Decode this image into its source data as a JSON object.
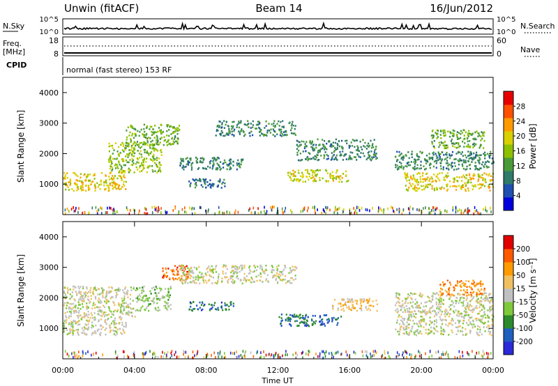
{
  "header": {
    "station": "Unwin (fitACF)",
    "beam": "Beam 14",
    "date": "16/Jun/2012"
  },
  "noise_panel": {
    "left_label": "N.Sky",
    "right_label": "N.Search",
    "left_ticks": [
      "10^5",
      "10^0"
    ],
    "right_ticks": [
      "10^5",
      "10^0"
    ]
  },
  "freq_panel": {
    "left_label": "Freq.",
    "left_unit": "[MHz]",
    "left_ticks": [
      "18",
      "8"
    ],
    "right_label": "Nave",
    "right_ticks": [
      "60",
      "0"
    ]
  },
  "cpid": {
    "label": "CPID",
    "text": "normal (fast stereo) 153 RF"
  },
  "colors": {
    "axis": "#000000",
    "ground_scatter_gray": "#c0c0c0"
  },
  "chart_data": [
    {
      "type": "heatmap",
      "name": "power",
      "ylabel": "Slant Range [km]",
      "xlim_hours": [
        0,
        24
      ],
      "ylim": [
        0,
        4500
      ],
      "yticks": [
        1000,
        2000,
        3000,
        4000
      ],
      "colorbar": {
        "label": "Power [dB]",
        "ticks": [
          4,
          8,
          12,
          16,
          20,
          24,
          28
        ],
        "range": [
          0,
          32
        ],
        "colors": [
          "#0000dd",
          "#1f4fb0",
          "#2f7a6a",
          "#4a9a3a",
          "#8cc000",
          "#d8d000",
          "#ff9b00",
          "#ff5000",
          "#e80000"
        ]
      },
      "echo_regions": [
        {
          "t": [
            0.0,
            3.5
          ],
          "r": [
            800,
            1400
          ],
          "value": 20
        },
        {
          "t": [
            2.5,
            5.5
          ],
          "r": [
            1400,
            2400
          ],
          "value": 16
        },
        {
          "t": [
            3.5,
            6.5
          ],
          "r": [
            2300,
            3000
          ],
          "value": 14
        },
        {
          "t": [
            6.5,
            10.0
          ],
          "r": [
            1500,
            1900
          ],
          "value": 10
        },
        {
          "t": [
            7.0,
            9.0
          ],
          "r": [
            900,
            1200
          ],
          "value": 8
        },
        {
          "t": [
            8.5,
            13.0
          ],
          "r": [
            2600,
            3100
          ],
          "value": 10
        },
        {
          "t": [
            12.5,
            16.0
          ],
          "r": [
            1100,
            1500
          ],
          "value": 18
        },
        {
          "t": [
            13.0,
            17.5
          ],
          "r": [
            1800,
            2500
          ],
          "value": 10
        },
        {
          "t": [
            19.0,
            24.0
          ],
          "r": [
            800,
            1400
          ],
          "value": 20
        },
        {
          "t": [
            18.5,
            24.0
          ],
          "r": [
            1500,
            2100
          ],
          "value": 10
        },
        {
          "t": [
            20.5,
            23.5
          ],
          "r": [
            2200,
            2800
          ],
          "value": 14
        }
      ]
    },
    {
      "type": "heatmap",
      "name": "velocity",
      "ylabel": "Slant Range [km]",
      "xlabel": "Time UT",
      "xlim_hours": [
        0,
        24
      ],
      "ylim": [
        0,
        4500
      ],
      "yticks": [
        1000,
        2000,
        3000,
        4000
      ],
      "xticks": [
        "00:00",
        "04:00",
        "08:00",
        "12:00",
        "16:00",
        "20:00",
        "00:00"
      ],
      "colorbar": {
        "label": "Velocity [m s⁻¹]",
        "ticks": [
          "200",
          "100",
          "50",
          "15",
          "-15",
          "-50",
          "-100",
          "-200"
        ],
        "range": [
          -250,
          250
        ],
        "colors": [
          "#2a2ad8",
          "#1f5fc0",
          "#2b8a2b",
          "#7ec93a",
          "#c0c0c0",
          "#f0c060",
          "#ff9b00",
          "#ff5a00",
          "#e00000"
        ]
      },
      "echo_regions": [
        {
          "t": [
            0.0,
            3.5
          ],
          "r": [
            800,
            1400
          ],
          "value": 0
        },
        {
          "t": [
            0.0,
            4.0
          ],
          "r": [
            1400,
            2400
          ],
          "value": 0
        },
        {
          "t": [
            4.0,
            6.0
          ],
          "r": [
            1600,
            2400
          ],
          "value": -40
        },
        {
          "t": [
            5.5,
            7.0
          ],
          "r": [
            2600,
            3100
          ],
          "value": 150
        },
        {
          "t": [
            7.0,
            9.5
          ],
          "r": [
            1600,
            1900
          ],
          "value": -150
        },
        {
          "t": [
            6.5,
            13.0
          ],
          "r": [
            2500,
            3100
          ],
          "value": 0
        },
        {
          "t": [
            12.0,
            15.5
          ],
          "r": [
            1100,
            1500
          ],
          "value": -150
        },
        {
          "t": [
            15.0,
            17.5
          ],
          "r": [
            1600,
            2000
          ],
          "value": 60
        },
        {
          "t": [
            18.5,
            24.0
          ],
          "r": [
            800,
            2200
          ],
          "value": 0
        },
        {
          "t": [
            21.0,
            23.5
          ],
          "r": [
            2100,
            2600
          ],
          "value": 120
        }
      ]
    }
  ]
}
